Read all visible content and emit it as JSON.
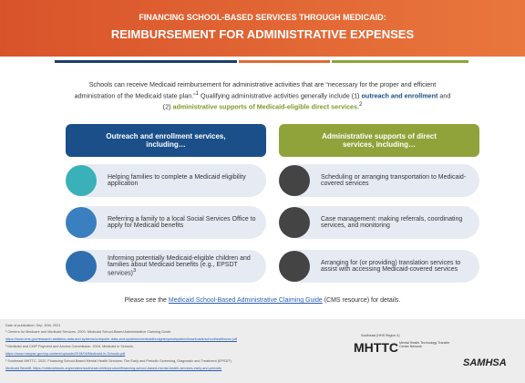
{
  "header": {
    "title_top": "FINANCING SCHOOL-BASED SERVICES THROUGH MEDICAID:",
    "title_main": "REIMBURSEMENT FOR ADMINISTRATIVE EXPENSES"
  },
  "intro": [
    "Schools can receive Medicaid reimbursement for administrative activities that are “necessary for the proper and efficient administration of the Medicaid state plan.”",
    "1",
    " Qualifying administrative activities generally include (1) ",
    "outreach and enrollment",
    " and (2) ",
    "administrative supports of Medicaid-eligible direct services.",
    "2"
  ],
  "columns": [
    {
      "heading": "Outreach and enrollment services, including…",
      "items": [
        {
          "text": "Helping families to complete a Medicaid eligibility application"
        },
        {
          "text": "Referring a family to a local Social Services Office to apply for Medicaid benefits"
        },
        {
          "text": "Informing potentially Medicaid-eligible children and families about Medicaid benefits (e.g., EPSDT services)",
          "sup": "3"
        }
      ]
    },
    {
      "heading": "Administrative supports of direct services, including…",
      "items": [
        {
          "text": "Scheduling or arranging transportation to Medicaid-covered services"
        },
        {
          "text": "Case management: making referrals, coordinating services, and monitoring"
        },
        {
          "text": "Arranging for (or providing) translation services to assist with accessing Medicaid-covered services"
        }
      ]
    }
  ],
  "see_also": {
    "before": "Please see the ",
    "link": "Medicaid School-Based Administrative Claiming Guide",
    "after": " (CMS resource) for details."
  },
  "footer": {
    "date": "Date of publication: Sep. 30th, 2021",
    "notes": [
      "¹ Centers for Medicare and Medicaid Services. 2003. Medicaid School-Based Administrative Claiming Guide.",
      "https://www.cms.gov/research-statistics-data-and-systems/computer-data-and-systems/medicaidbudgetexpendsystem/downloads/schoolhealthsvcs.pdf",
      "² Medicaid and CHIP Payment and Access Commission. 2018. Medicaid in Schools.",
      "https://www.macpac.gov/wp-content/uploads/2018/04/Medicaid-in-Schools.pdf",
      "³ Southeast MHTTC. 2020. Financing School-Based Mental Health Services: The Early and Periodic Screening, Diagnostic and Treatment (EPSDT)",
      "Medicaid Benefit. https://mhttcnetwork.org/centers/southeast-mhttc/product/financing-school-based-mental-health-services-early-and-periodic"
    ],
    "region": "Southeast (HHS Region 4)",
    "mhttc": "MHTTC",
    "mhttc_full": "Mental Health Technology Transfer Center Network",
    "samhsa": "SAMHSA"
  }
}
